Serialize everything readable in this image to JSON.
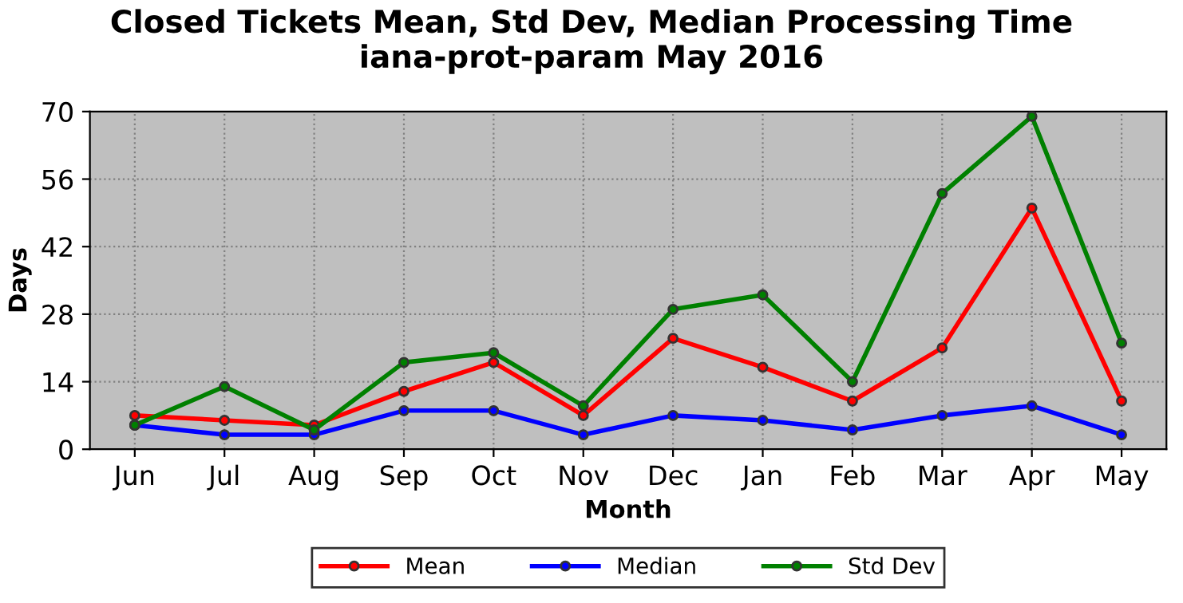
{
  "chart_data": {
    "type": "line",
    "title": "Closed Tickets Mean, Std Dev, Median Processing Time\niana-prot-param May 2016",
    "xlabel": "Month",
    "ylabel": "Days",
    "categories": [
      "Jun",
      "Jul",
      "Aug",
      "Sep",
      "Oct",
      "Nov",
      "Dec",
      "Jan",
      "Feb",
      "Mar",
      "Apr",
      "May"
    ],
    "series": [
      {
        "name": "Mean",
        "color": "#ff0000",
        "values": [
          7,
          6,
          5,
          12,
          18,
          7,
          23,
          17,
          10,
          21,
          50,
          10
        ]
      },
      {
        "name": "Median",
        "color": "#0000ff",
        "values": [
          5,
          3,
          3,
          8,
          8,
          3,
          7,
          6,
          4,
          7,
          9,
          3
        ]
      },
      {
        "name": "Std Dev",
        "color": "#008000",
        "values": [
          5,
          13,
          4,
          18,
          20,
          9,
          29,
          32,
          14,
          53,
          69,
          22
        ]
      }
    ],
    "ylim": [
      0,
      70
    ],
    "yticks": [
      0,
      14,
      28,
      42,
      56,
      70
    ],
    "grid": true,
    "legend": "bottom",
    "marker": "circle",
    "line_style": "solid"
  }
}
